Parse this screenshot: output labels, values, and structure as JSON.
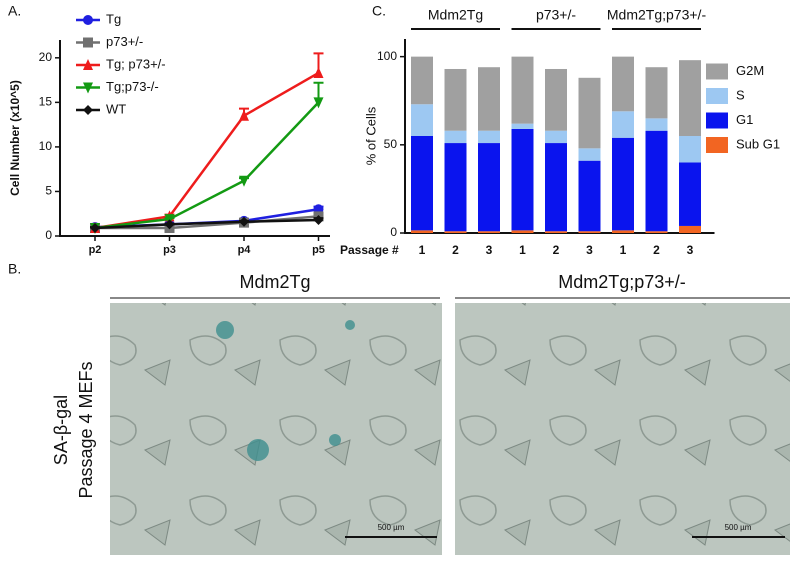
{
  "chart_data": [
    {
      "type": "line",
      "panel": "A.",
      "y_label": "Cell Number (x10^5)",
      "categories": [
        "p2",
        "p3",
        "p4",
        "p5"
      ],
      "ylim": [
        0,
        22
      ],
      "yticks": [
        0,
        5,
        10,
        15,
        20
      ],
      "series": [
        {
          "name": "Tg",
          "color": "#1f1fe0",
          "marker": "circle",
          "values": [
            1,
            1.3,
            1.7,
            3.0
          ],
          "errors": [
            0.1,
            0.1,
            0.2,
            0.3
          ]
        },
        {
          "name": "p73+/-",
          "color": "#707070",
          "marker": "square",
          "values": [
            0.9,
            0.9,
            1.5,
            2.2
          ],
          "errors": [
            0.1,
            0.1,
            0.2,
            0.3
          ]
        },
        {
          "name": "Tg; p73+/-",
          "color": "#ee1c1c",
          "marker": "triangle-up",
          "values": [
            0.9,
            2.2,
            13.5,
            18.3
          ],
          "errors": [
            0.1,
            0.2,
            0.8,
            2.2
          ]
        },
        {
          "name": "Tg;p73-/-",
          "color": "#139a13",
          "marker": "triangle-down",
          "values": [
            0.9,
            1.9,
            6.2,
            15.0
          ],
          "errors": [
            0.1,
            0.1,
            0.3,
            2.2
          ]
        },
        {
          "name": "WT",
          "color": "#111111",
          "marker": "diamond",
          "values": [
            0.9,
            1.3,
            1.6,
            1.8
          ],
          "errors": [
            0.1,
            0.1,
            0.1,
            0.2
          ]
        }
      ]
    },
    {
      "type": "stacked-bar",
      "panel": "C.",
      "y_label": "% of Cells",
      "x_label": "Passage #",
      "groups": [
        {
          "label": "Mdm2Tg",
          "categories": [
            "1",
            "2",
            "3"
          ]
        },
        {
          "label": "p73+/-",
          "categories": [
            "1",
            "2",
            "3"
          ]
        },
        {
          "label": "Mdm2Tg;p73+/-",
          "categories": [
            "1",
            "2",
            "3"
          ]
        }
      ],
      "ylim": [
        0,
        110
      ],
      "yticks": [
        0,
        50,
        100
      ],
      "series": [
        {
          "name": "Sub G1",
          "color": "#f26522",
          "values": [
            1.5,
            1,
            1,
            1.5,
            1,
            1,
            1.5,
            1,
            4
          ]
        },
        {
          "name": "G1",
          "color": "#0a14ee",
          "values": [
            53.5,
            50,
            50,
            57.5,
            50,
            40,
            52.5,
            57,
            36
          ]
        },
        {
          "name": "S",
          "color": "#9dc8f2",
          "values": [
            18,
            7,
            7,
            3,
            7,
            7,
            15,
            7,
            15
          ]
        },
        {
          "name": "G2M",
          "color": "#a0a0a0",
          "values": [
            27,
            35,
            36,
            38,
            35,
            40,
            31,
            29,
            43
          ]
        }
      ]
    }
  ],
  "micrographs": {
    "panel": "B.",
    "side_label": [
      "SA-β-gal",
      "Passage 4 MEFs"
    ],
    "images": [
      {
        "title": "Mdm2Tg",
        "scale_bar": "500 µm"
      },
      {
        "title": "Mdm2Tg;p73+/-",
        "scale_bar": "500 µm"
      }
    ]
  }
}
